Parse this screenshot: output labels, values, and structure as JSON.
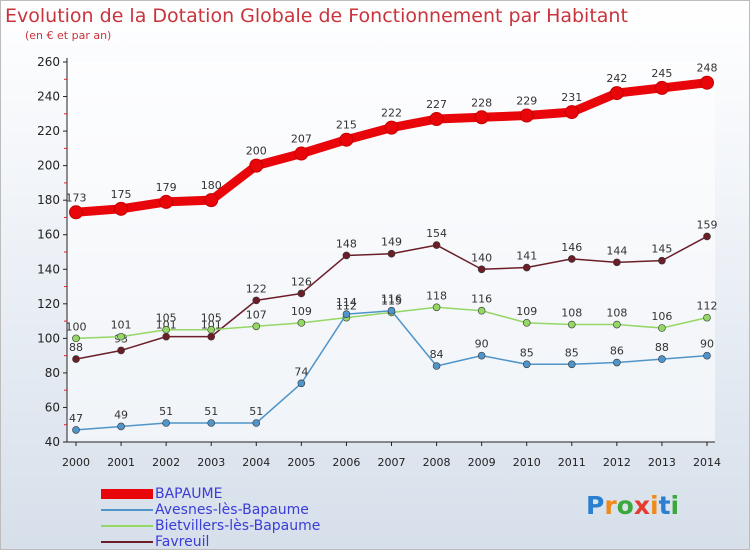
{
  "header": {
    "title": "Evolution de la Dotation Globale de Fonctionnement par Habitant",
    "subtitle": "(en € et par an)"
  },
  "chart_data": {
    "type": "line",
    "title": "Evolution de la Dotation Globale de Fonctionnement par Habitant",
    "subtitle": "(en € et par an)",
    "xlabel": "",
    "ylabel": "",
    "x": [
      "2000",
      "2001",
      "2002",
      "2003",
      "2004",
      "2005",
      "2006",
      "2007",
      "2008",
      "2009",
      "2010",
      "2011",
      "2012",
      "2013",
      "2014"
    ],
    "yticks": [
      40,
      60,
      80,
      100,
      120,
      140,
      160,
      180,
      200,
      220,
      240,
      260
    ],
    "ylim": [
      40,
      260
    ],
    "grid": false,
    "legend_position": "bottom-left",
    "series": [
      {
        "name": "BAPAUME",
        "color": "#e8060a",
        "values": [
          173,
          175,
          179,
          180,
          200,
          207,
          215,
          222,
          227,
          228,
          229,
          231,
          242,
          245,
          248
        ]
      },
      {
        "name": "Avesnes-lès-Bapaume",
        "color": "#4f95c9",
        "values": [
          47,
          49,
          51,
          51,
          51,
          74,
          114,
          116,
          84,
          90,
          85,
          85,
          86,
          88,
          90
        ]
      },
      {
        "name": "Bietvillers-lès-Bapaume",
        "color": "#94d765",
        "values": [
          100,
          101,
          105,
          105,
          107,
          109,
          112,
          115,
          118,
          116,
          109,
          108,
          108,
          106,
          112
        ]
      },
      {
        "name": "Favreuil",
        "color": "#6b1e28",
        "values": [
          88,
          93,
          101,
          101,
          122,
          126,
          148,
          149,
          154,
          140,
          141,
          146,
          144,
          145,
          159
        ]
      }
    ]
  },
  "legend": {
    "items": [
      {
        "label": "BAPAUME",
        "color": "#e8060a",
        "thickness": 10
      },
      {
        "label": "Avesnes-lès-Bapaume",
        "color": "#4f95c9",
        "thickness": 2
      },
      {
        "label": "Bietvillers-lès-Bapaume",
        "color": "#94d765",
        "thickness": 2
      },
      {
        "label": "Favreuil",
        "color": "#6b1e28",
        "thickness": 2
      }
    ]
  },
  "logo": {
    "letters": [
      "P",
      "r",
      "o",
      "x",
      "i",
      "t",
      "i"
    ],
    "colors": [
      "#2b7fd0",
      "#f08a1c",
      "#3aa83a",
      "#e53b2c",
      "#f08a1c",
      "#2b7fd0",
      "#3aa83a"
    ]
  }
}
